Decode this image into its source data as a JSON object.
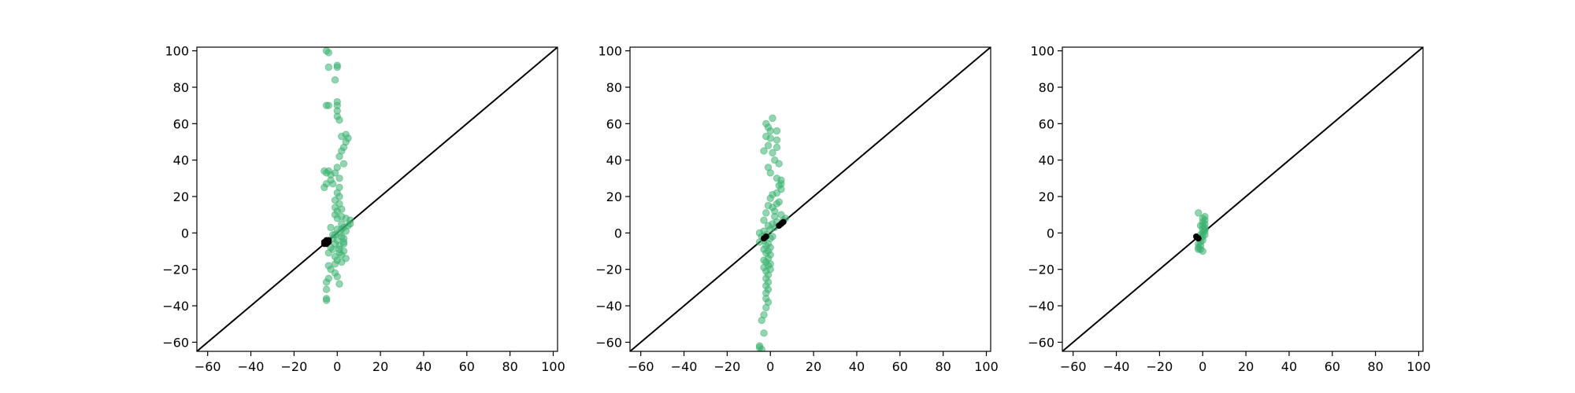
{
  "figure": {
    "background": "#ffffff"
  },
  "chart_data": [
    {
      "type": "scatter",
      "title": "",
      "xlabel": "",
      "ylabel": "",
      "xlim": [
        -65,
        102
      ],
      "ylim": [
        -65,
        102
      ],
      "xticks": [
        -60,
        -40,
        -20,
        0,
        20,
        40,
        60,
        80,
        100
      ],
      "yticks": [
        -60,
        -40,
        -20,
        0,
        20,
        40,
        60,
        80,
        100
      ],
      "xtick_labels": [
        "−60",
        "−40",
        "−20",
        "0",
        "20",
        "40",
        "60",
        "80",
        "100"
      ],
      "ytick_labels": [
        "−60",
        "−40",
        "−20",
        "0",
        "20",
        "40",
        "60",
        "80",
        "100"
      ],
      "grid": false,
      "reference_line": {
        "x": [
          -65,
          102
        ],
        "y": [
          -65,
          102
        ],
        "color": "#000000"
      },
      "series": [
        {
          "color": "#3cb371",
          "alpha": 0.55,
          "points": [
            [
              -4,
              99
            ],
            [
              -5,
              100
            ],
            [
              -4,
              91
            ],
            [
              0,
              92
            ],
            [
              0,
              91
            ],
            [
              -1,
              84
            ],
            [
              -5,
              70
            ],
            [
              -4,
              70
            ],
            [
              0,
              72
            ],
            [
              0,
              70
            ],
            [
              0,
              67
            ],
            [
              0,
              64
            ],
            [
              1,
              62
            ],
            [
              2,
              53
            ],
            [
              4,
              54
            ],
            [
              5,
              52
            ],
            [
              4,
              50
            ],
            [
              3,
              47
            ],
            [
              2,
              45
            ],
            [
              1,
              42
            ],
            [
              3,
              38
            ],
            [
              0,
              36
            ],
            [
              -1,
              33
            ],
            [
              -4,
              34
            ],
            [
              -6,
              34
            ],
            [
              -5,
              33
            ],
            [
              -3,
              32
            ],
            [
              -6,
              25
            ],
            [
              -5,
              27
            ],
            [
              -3,
              29
            ],
            [
              -2,
              27
            ],
            [
              1,
              30
            ],
            [
              1,
              25
            ],
            [
              0,
              22
            ],
            [
              1,
              20
            ],
            [
              -1,
              18
            ],
            [
              1,
              16
            ],
            [
              -1,
              14
            ],
            [
              2,
              13
            ],
            [
              0,
              12
            ],
            [
              -1,
              10
            ],
            [
              2,
              9
            ],
            [
              0,
              8
            ],
            [
              4,
              8
            ],
            [
              6,
              7
            ],
            [
              6,
              5
            ],
            [
              5,
              4
            ],
            [
              3,
              3
            ],
            [
              2,
              2
            ],
            [
              4,
              1
            ],
            [
              1,
              0
            ],
            [
              -1,
              -1
            ],
            [
              2,
              -2
            ],
            [
              -2,
              -3
            ],
            [
              0,
              -4
            ],
            [
              3,
              -5
            ],
            [
              -1,
              -6
            ],
            [
              1,
              -7
            ],
            [
              -3,
              -8
            ],
            [
              1,
              -9
            ],
            [
              3,
              -10
            ],
            [
              -4,
              -11
            ],
            [
              2,
              -12
            ],
            [
              -1,
              -13
            ],
            [
              4,
              -14
            ],
            [
              0,
              -15
            ],
            [
              2,
              -16
            ],
            [
              -1,
              -17
            ],
            [
              -4,
              -18
            ],
            [
              -3,
              -20
            ],
            [
              -1,
              -22
            ],
            [
              0,
              -24
            ],
            [
              -4,
              -25
            ],
            [
              -5,
              -27
            ],
            [
              1,
              -28
            ],
            [
              -5,
              -31
            ],
            [
              -5,
              -36
            ],
            [
              -5,
              -37
            ],
            [
              2,
              5
            ],
            [
              -3,
              3
            ],
            [
              -2,
              -1
            ],
            [
              3,
              -3
            ],
            [
              0,
              2
            ],
            [
              1,
              -11
            ],
            [
              -2,
              -9
            ],
            [
              3,
              -6
            ]
          ]
        }
      ],
      "black_points": [
        [
          -6,
          -6
        ],
        [
          -5,
          -5
        ],
        [
          -4,
          -4
        ],
        [
          -5,
          -6
        ],
        [
          -6,
          -5
        ],
        [
          -4,
          -5
        ],
        [
          -5,
          -4
        ]
      ]
    },
    {
      "type": "scatter",
      "title": "",
      "xlabel": "",
      "ylabel": "",
      "xlim": [
        -65,
        102
      ],
      "ylim": [
        -65,
        102
      ],
      "xticks": [
        -60,
        -40,
        -20,
        0,
        20,
        40,
        60,
        80,
        100
      ],
      "yticks": [
        -60,
        -40,
        -20,
        0,
        20,
        40,
        60,
        80,
        100
      ],
      "xtick_labels": [
        "−60",
        "−40",
        "−20",
        "0",
        "20",
        "40",
        "60",
        "80",
        "100"
      ],
      "ytick_labels": [
        "−60",
        "−40",
        "−20",
        "0",
        "20",
        "40",
        "60",
        "80",
        "100"
      ],
      "grid": false,
      "reference_line": {
        "x": [
          -65,
          102
        ],
        "y": [
          -65,
          102
        ],
        "color": "#000000"
      },
      "series": [
        {
          "color": "#3cb371",
          "alpha": 0.55,
          "points": [
            [
              1,
              63
            ],
            [
              -2,
              60
            ],
            [
              -1,
              58
            ],
            [
              0,
              56
            ],
            [
              3,
              56
            ],
            [
              -2,
              53
            ],
            [
              0,
              52
            ],
            [
              3,
              51
            ],
            [
              -1,
              48
            ],
            [
              3,
              47
            ],
            [
              -3,
              45
            ],
            [
              1,
              44
            ],
            [
              2,
              40
            ],
            [
              4,
              38
            ],
            [
              -1,
              36
            ],
            [
              0,
              33
            ],
            [
              3,
              30
            ],
            [
              5,
              29
            ],
            [
              5,
              27
            ],
            [
              4,
              26
            ],
            [
              5,
              24
            ],
            [
              3,
              22
            ],
            [
              1,
              21
            ],
            [
              0,
              19
            ],
            [
              4,
              17
            ],
            [
              3,
              16
            ],
            [
              -1,
              15
            ],
            [
              1,
              14
            ],
            [
              2,
              12
            ],
            [
              -2,
              11
            ],
            [
              5,
              10
            ],
            [
              7,
              8
            ],
            [
              6,
              7
            ],
            [
              3,
              6
            ],
            [
              1,
              5
            ],
            [
              -1,
              4
            ],
            [
              2,
              3
            ],
            [
              0,
              2
            ],
            [
              -3,
              1
            ],
            [
              -5,
              0
            ],
            [
              -2,
              -1
            ],
            [
              -4,
              -2
            ],
            [
              0,
              -3
            ],
            [
              -3,
              -4
            ],
            [
              -5,
              -5
            ],
            [
              -1,
              -6
            ],
            [
              -2,
              -7
            ],
            [
              0,
              -8
            ],
            [
              -3,
              -9
            ],
            [
              -1,
              -10
            ],
            [
              -2,
              -11
            ],
            [
              0,
              -12
            ],
            [
              -1,
              -14
            ],
            [
              -3,
              -15
            ],
            [
              -2,
              -16
            ],
            [
              0,
              -17
            ],
            [
              -1,
              -18
            ],
            [
              -3,
              -19
            ],
            [
              -2,
              -21
            ],
            [
              -1,
              -23
            ],
            [
              -2,
              -25
            ],
            [
              -1,
              -27
            ],
            [
              -2,
              -29
            ],
            [
              -1,
              -31
            ],
            [
              -2,
              -33
            ],
            [
              -2,
              -36
            ],
            [
              -1,
              -38
            ],
            [
              -2,
              -41
            ],
            [
              -3,
              -45
            ],
            [
              -4,
              -48
            ],
            [
              -3,
              -55
            ],
            [
              -5,
              -62
            ],
            [
              -5,
              -63
            ],
            [
              -4,
              -64
            ],
            [
              1,
              -2
            ],
            [
              -3,
              7
            ],
            [
              0,
              -20
            ],
            [
              2,
              9
            ]
          ]
        }
      ],
      "black_points": [
        [
          5,
          5
        ],
        [
          6,
          6
        ],
        [
          4,
          4
        ],
        [
          -2,
          -2
        ],
        [
          -3,
          -3
        ]
      ]
    },
    {
      "type": "scatter",
      "title": "",
      "xlabel": "",
      "ylabel": "",
      "xlim": [
        -65,
        102
      ],
      "ylim": [
        -65,
        102
      ],
      "xticks": [
        -60,
        -40,
        -20,
        0,
        20,
        40,
        60,
        80,
        100
      ],
      "yticks": [
        -60,
        -40,
        -20,
        0,
        20,
        40,
        60,
        80,
        100
      ],
      "xtick_labels": [
        "−60",
        "−40",
        "−20",
        "0",
        "20",
        "40",
        "60",
        "80",
        "100"
      ],
      "ytick_labels": [
        "−60",
        "−40",
        "−20",
        "0",
        "20",
        "40",
        "60",
        "80",
        "100"
      ],
      "grid": false,
      "reference_line": {
        "x": [
          -65,
          102
        ],
        "y": [
          -65,
          102
        ],
        "color": "#000000"
      },
      "series": [
        {
          "color": "#3cb371",
          "alpha": 0.55,
          "points": [
            [
              -2,
              11
            ],
            [
              1,
              9
            ],
            [
              0,
              8
            ],
            [
              1,
              7
            ],
            [
              0,
              6
            ],
            [
              1,
              5
            ],
            [
              0,
              4
            ],
            [
              1,
              3
            ],
            [
              0,
              2
            ],
            [
              1,
              1
            ],
            [
              0,
              0
            ],
            [
              -1,
              -1
            ],
            [
              0,
              -2
            ],
            [
              -1,
              -3
            ],
            [
              0,
              -4
            ],
            [
              -1,
              -5
            ],
            [
              -2,
              -6
            ],
            [
              -1,
              -7
            ],
            [
              -2,
              -8
            ],
            [
              -1,
              -9
            ],
            [
              0,
              -10
            ],
            [
              -2,
              -9
            ],
            [
              1,
              2
            ],
            [
              -1,
              4
            ],
            [
              1,
              -1
            ]
          ]
        }
      ],
      "black_points": [
        [
          -3,
          -2
        ],
        [
          -2,
          -3
        ]
      ]
    }
  ]
}
